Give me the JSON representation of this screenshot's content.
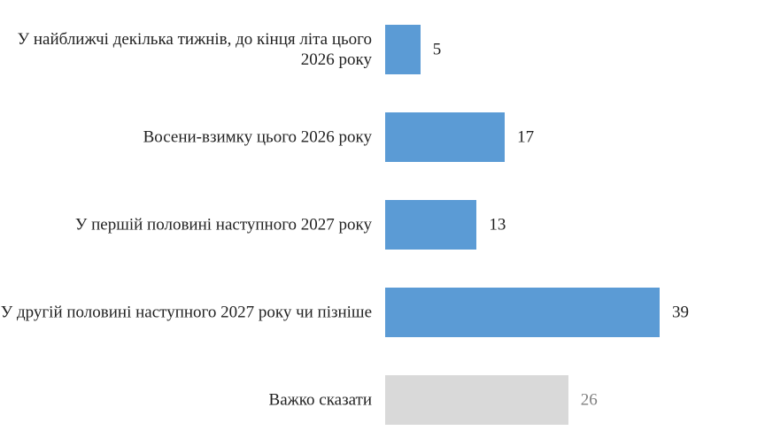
{
  "chart_data": {
    "type": "bar",
    "orientation": "horizontal",
    "categories": [
      "У найближчі декілька тижнів, до кінця літа цього 2026 року",
      "Восени-взимку цього 2026 року",
      "У першій половині наступного 2027 року",
      "У другій половині наступного 2027 року чи пізніше",
      "Важко сказати"
    ],
    "values": [
      5,
      17,
      13,
      39,
      26
    ],
    "colors": [
      "#5b9bd5",
      "#5b9bd5",
      "#5b9bd5",
      "#5b9bd5",
      "#d9d9d9"
    ],
    "value_label_colors": [
      "#222222",
      "#222222",
      "#222222",
      "#222222",
      "#7f7f7f"
    ]
  }
}
